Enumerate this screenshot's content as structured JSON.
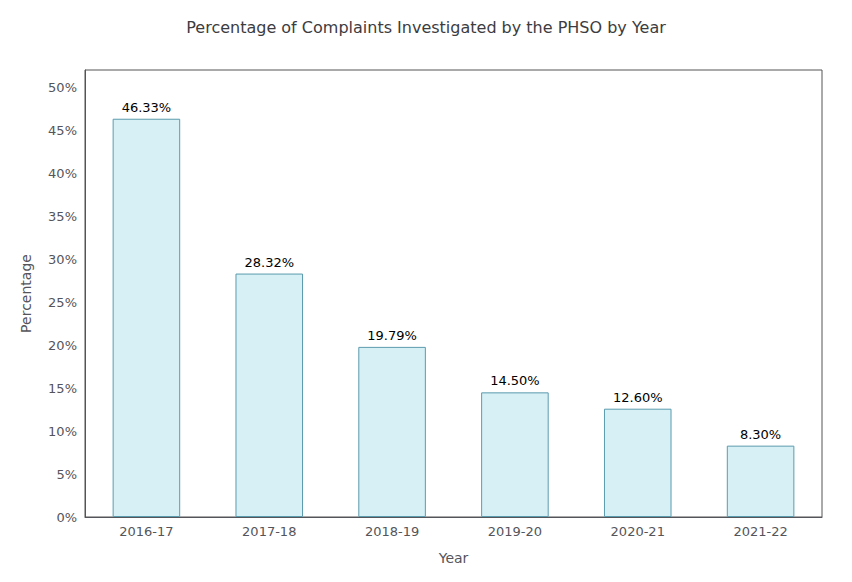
{
  "chart_data": {
    "type": "bar",
    "title": "Percentage of Complaints Investigated by the PHSO by Year",
    "xlabel": "Year",
    "ylabel": "Percentage",
    "categories": [
      "2016-17",
      "2017-18",
      "2018-19",
      "2019-20",
      "2020-21",
      "2021-22"
    ],
    "values": [
      46.33,
      28.32,
      19.79,
      14.5,
      12.6,
      8.3
    ],
    "value_labels": [
      "46.33%",
      "28.32%",
      "19.79%",
      "14.50%",
      "12.60%",
      "8.30%"
    ],
    "data_labels": true,
    "color": "#d6f0f5",
    "ylim": [
      0,
      52
    ],
    "yticks": [
      {
        "value": 0,
        "label": "0%"
      },
      {
        "value": 5,
        "label": "5%"
      },
      {
        "value": 10,
        "label": "10%"
      },
      {
        "value": 15,
        "label": "15%"
      },
      {
        "value": 20,
        "label": "20%"
      },
      {
        "value": 25,
        "label": "25%"
      },
      {
        "value": 30,
        "label": "30%"
      },
      {
        "value": 35,
        "label": "35%"
      },
      {
        "value": 40,
        "label": "40%"
      },
      {
        "value": 45,
        "label": "45%"
      },
      {
        "value": 50,
        "label": "50%"
      }
    ],
    "grid": false
  }
}
